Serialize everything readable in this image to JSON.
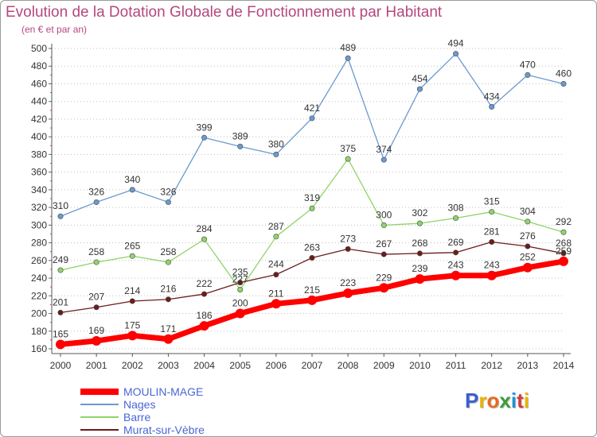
{
  "title": "Evolution de la Dotation Globale de Fonctionnement par Habitant",
  "subtitle": "(en € et par an)",
  "logo": {
    "text": "Proxiti",
    "colors": [
      "#3a5fcd",
      "#e8b400",
      "#e86a1c",
      "#3a9d3a",
      "#1e8fd6",
      "#d23a3a",
      "#e8b400"
    ]
  },
  "colors": {
    "title": "#b5477f",
    "axis": "#333333",
    "grid": "#bfbfbf",
    "legend_text": "#4a66d6"
  },
  "chart_data": {
    "type": "line",
    "title": "Evolution de la Dotation Globale de Fonctionnement par Habitant",
    "subtitle": "(en € et par an)",
    "x": [
      "2000",
      "2001",
      "2002",
      "2003",
      "2004",
      "2005",
      "2006",
      "2007",
      "2008",
      "2009",
      "2010",
      "2011",
      "2012",
      "2013",
      "2014"
    ],
    "ylim": [
      160,
      500
    ],
    "yticks": [
      160,
      180,
      200,
      220,
      240,
      260,
      280,
      300,
      320,
      340,
      360,
      380,
      400,
      420,
      440,
      460,
      480,
      500
    ],
    "grid": "horizontal dotted",
    "legend_position": "bottom-left",
    "series": [
      {
        "name": "MOULIN-MAGE",
        "color": "#ff0000",
        "values": [
          165,
          169,
          175,
          171,
          186,
          200,
          211,
          215,
          223,
          229,
          239,
          243,
          243,
          252,
          259
        ]
      },
      {
        "name": "Nages",
        "color": "#6a9ad0",
        "values": [
          310,
          326,
          340,
          326,
          399,
          389,
          380,
          421,
          489,
          374,
          454,
          494,
          434,
          470,
          460
        ]
      },
      {
        "name": "Barre",
        "color": "#8fd468",
        "values": [
          249,
          258,
          265,
          258,
          284,
          227,
          287,
          319,
          375,
          300,
          302,
          308,
          315,
          304,
          292
        ]
      },
      {
        "name": "Murat-sur-Vèbre",
        "color": "#6b1c1c",
        "values": [
          201,
          207,
          214,
          216,
          222,
          235,
          244,
          263,
          273,
          267,
          268,
          269,
          281,
          276,
          268
        ]
      }
    ]
  }
}
